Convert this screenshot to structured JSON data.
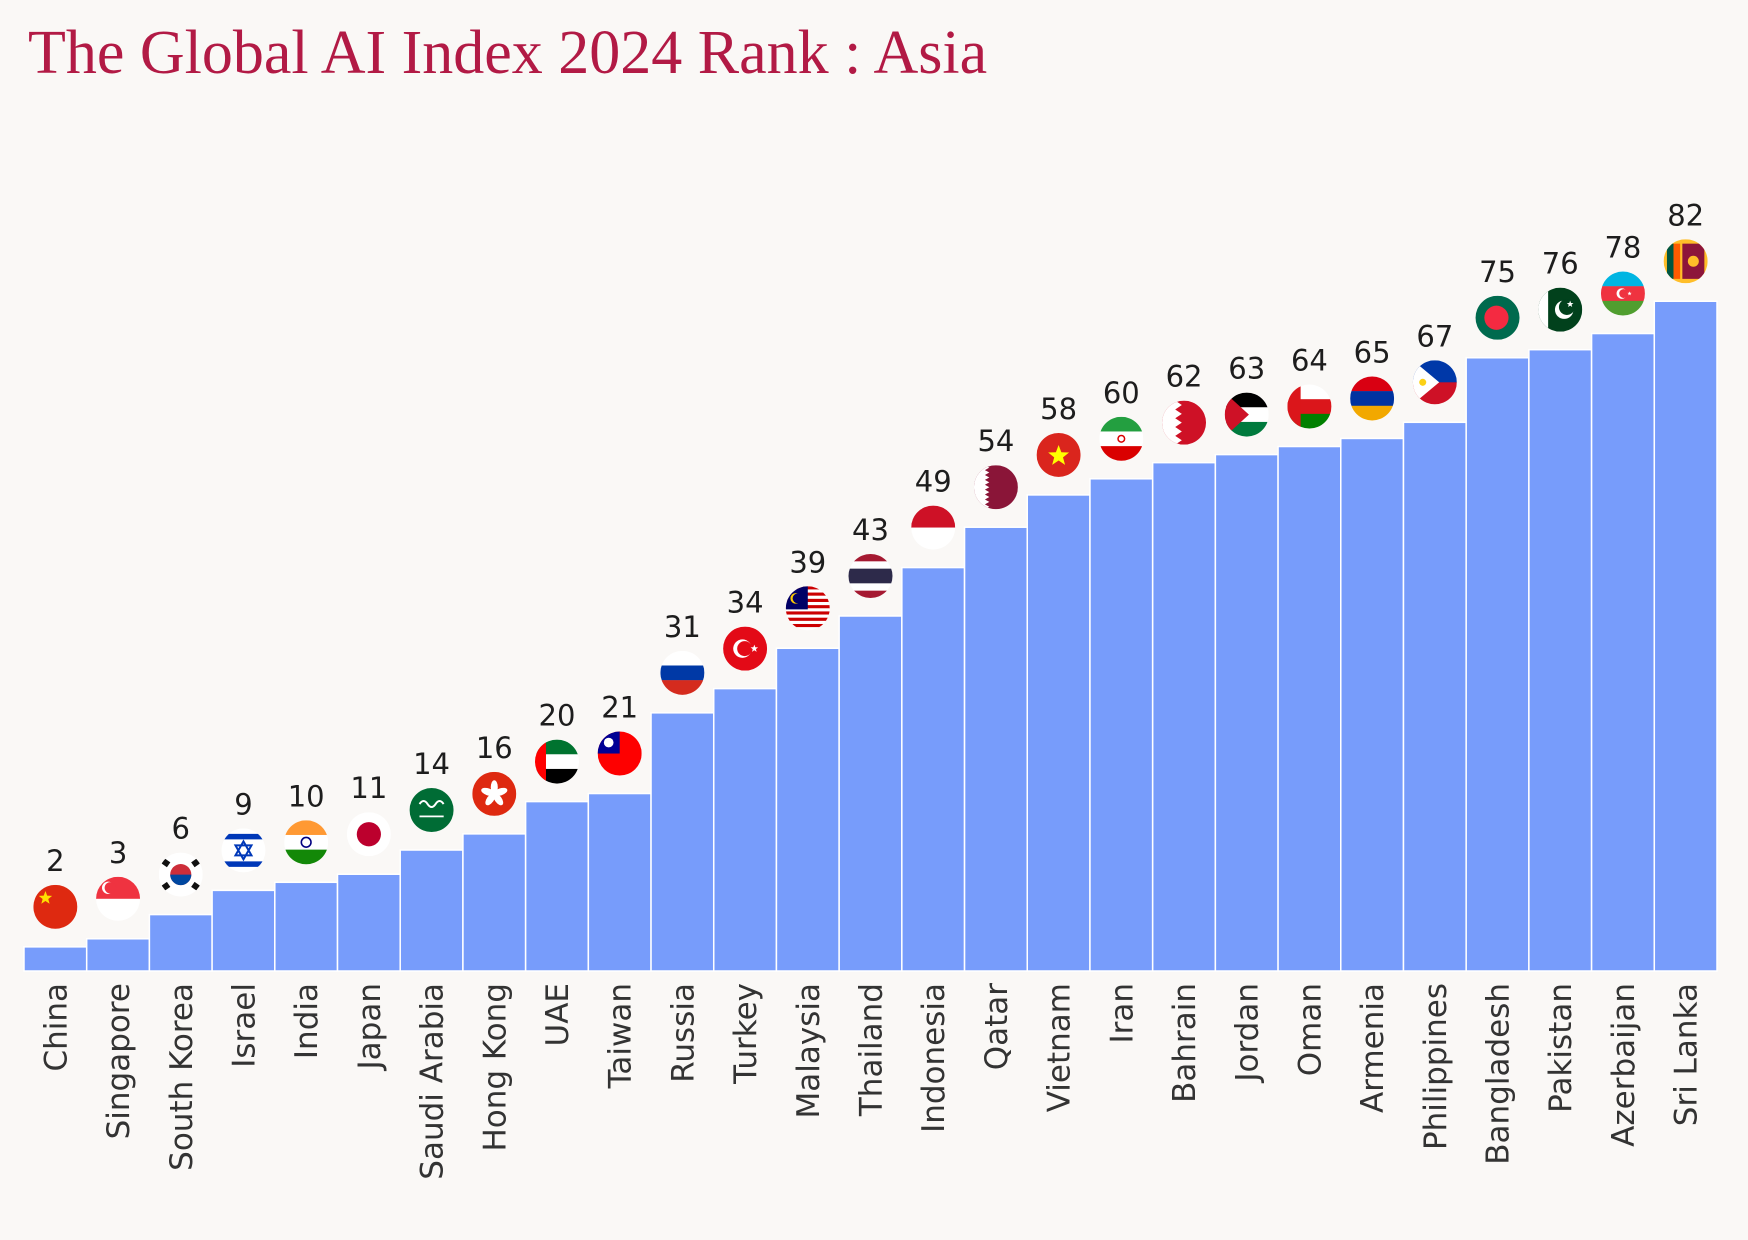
{
  "chart_data": {
    "type": "bar",
    "title": "The Global AI Index 2024 Rank : Asia",
    "xlabel": "",
    "ylabel": "",
    "ylim": [
      0,
      100
    ],
    "grid": false,
    "legend": "none",
    "categories": [
      "China",
      "Singapore",
      "South Korea",
      "Israel",
      "India",
      "Japan",
      "Saudi Arabia",
      "Hong Kong",
      "UAE",
      "Taiwan",
      "Russia",
      "Turkey",
      "Malaysia",
      "Thailand",
      "Indonesia",
      "Qatar",
      "Vietnam",
      "Iran",
      "Bahrain",
      "Jordan",
      "Oman",
      "Armenia",
      "Philippines",
      "Bangladesh",
      "Pakistan",
      "Azerbaijan",
      "Sri Lanka"
    ],
    "values": [
      2,
      3,
      6,
      9,
      10,
      11,
      14,
      16,
      20,
      21,
      31,
      34,
      39,
      43,
      49,
      54,
      58,
      60,
      62,
      63,
      64,
      65,
      67,
      75,
      76,
      78,
      82
    ],
    "bar_color": "#779cfb",
    "flag_icons": [
      "china-flag-icon",
      "singapore-flag-icon",
      "south-korea-flag-icon",
      "israel-flag-icon",
      "india-flag-icon",
      "japan-flag-icon",
      "saudi-arabia-flag-icon",
      "hong-kong-flag-icon",
      "uae-flag-icon",
      "taiwan-flag-icon",
      "russia-flag-icon",
      "turkey-flag-icon",
      "malaysia-flag-icon",
      "thailand-flag-icon",
      "indonesia-flag-icon",
      "qatar-flag-icon",
      "vietnam-flag-icon",
      "iran-flag-icon",
      "bahrain-flag-icon",
      "jordan-flag-icon",
      "oman-flag-icon",
      "armenia-flag-icon",
      "philippines-flag-icon",
      "bangladesh-flag-icon",
      "pakistan-flag-icon",
      "azerbaijan-flag-icon",
      "sri-lanka-flag-icon"
    ]
  }
}
